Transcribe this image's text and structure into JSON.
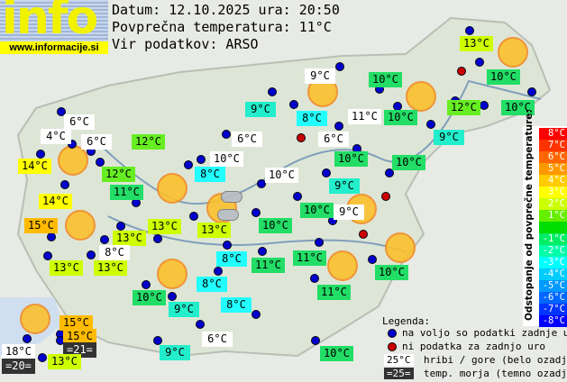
{
  "logo": {
    "text": "info",
    "url": "www.informacije.si"
  },
  "header": {
    "date_line": "Datum: 12.10.2025 ura: 20:50",
    "avg_line": "Povprečna temperatura: 11°C",
    "source_line": "Vir podatkov: ARSO"
  },
  "colors": {
    "white": "#ffffff",
    "cyan": "#22ffff",
    "teal": "#22eecc",
    "green": "#22dd66",
    "lime": "#66ee22",
    "yellowgreen": "#ccff00",
    "yellow": "#ffff00",
    "orange": "#ffbb00",
    "dark": "#333333",
    "available_dot": "#0000cc",
    "nodata_dot": "#cc0000"
  },
  "stations": [
    {
      "t": "6°C",
      "bg": "white"
    },
    {
      "t": "4°C",
      "bg": "white"
    },
    {
      "t": "6°C",
      "bg": "white"
    },
    {
      "t": "14°C",
      "bg": "yellow"
    },
    {
      "t": "12°C",
      "bg": "lime"
    },
    {
      "t": "12°C",
      "bg": "lime"
    },
    {
      "t": "11°C",
      "bg": "green"
    },
    {
      "t": "14°C",
      "bg": "yellow"
    },
    {
      "t": "15°C",
      "bg": "orange"
    },
    {
      "t": "13°C",
      "bg": "yellowgreen"
    },
    {
      "t": "13°C",
      "bg": "yellowgreen"
    },
    {
      "t": "8°C",
      "bg": "white"
    },
    {
      "t": "13°C",
      "bg": "yellowgreen"
    },
    {
      "t": "13°C",
      "bg": "yellowgreen"
    },
    {
      "t": "13°C",
      "bg": "yellowgreen"
    },
    {
      "t": "8°C",
      "bg": "cyan"
    },
    {
      "t": "10°C",
      "bg": "white"
    },
    {
      "t": "6°C",
      "bg": "white"
    },
    {
      "t": "9°C",
      "bg": "teal"
    },
    {
      "t": "9°C",
      "bg": "white"
    },
    {
      "t": "8°C",
      "bg": "cyan"
    },
    {
      "t": "11°C",
      "bg": "white"
    },
    {
      "t": "6°C",
      "bg": "white"
    },
    {
      "t": "10°C",
      "bg": "green"
    },
    {
      "t": "10°C",
      "bg": "white"
    },
    {
      "t": "9°C",
      "bg": "teal"
    },
    {
      "t": "10°C",
      "bg": "green"
    },
    {
      "t": "9°C",
      "bg": "white"
    },
    {
      "t": "10°C",
      "bg": "green"
    },
    {
      "t": "10°C",
      "bg": "green"
    },
    {
      "t": "10°C",
      "bg": "green"
    },
    {
      "t": "13°C",
      "bg": "yellowgreen"
    },
    {
      "t": "10°C",
      "bg": "green"
    },
    {
      "t": "12°C",
      "bg": "lime"
    },
    {
      "t": "10°C",
      "bg": "green"
    },
    {
      "t": "9°C",
      "bg": "teal"
    },
    {
      "t": "10°C",
      "bg": "green"
    },
    {
      "t": "8°C",
      "bg": "cyan"
    },
    {
      "t": "11°C",
      "bg": "green"
    },
    {
      "t": "11°C",
      "bg": "green"
    },
    {
      "t": "11°C",
      "bg": "green"
    },
    {
      "t": "10°C",
      "bg": "green"
    },
    {
      "t": "8°C",
      "bg": "cyan"
    },
    {
      "t": "8°C",
      "bg": "cyan"
    },
    {
      "t": "10°C",
      "bg": "green"
    },
    {
      "t": "9°C",
      "bg": "teal"
    },
    {
      "t": "6°C",
      "bg": "white"
    },
    {
      "t": "9°C",
      "bg": "teal"
    },
    {
      "t": "10°C",
      "bg": "green"
    },
    {
      "t": "15°C",
      "bg": "orange"
    },
    {
      "t": "15°C",
      "bg": "orange"
    },
    {
      "t": "=21=",
      "bg": "dark"
    },
    {
      "t": "18°C",
      "bg": "white"
    },
    {
      "t": "=20=",
      "bg": "dark"
    },
    {
      "t": "13°C",
      "bg": "yellowgreen"
    }
  ],
  "weather_icons": [
    "sunny",
    "sunny",
    "sunny",
    "sunny",
    "sunny",
    "sunny",
    "sunny",
    "sunny",
    "sunny",
    "sunny",
    "sunny",
    "partly-cloudy"
  ],
  "scale": {
    "title": "Odstopanje od povprečne temperature:",
    "steps": [
      {
        "label": "8°C",
        "color": "#ff0000"
      },
      {
        "label": "7°C",
        "color": "#ff3300"
      },
      {
        "label": "6°C",
        "color": "#ff6600"
      },
      {
        "label": "5°C",
        "color": "#ff9900"
      },
      {
        "label": "4°C",
        "color": "#ffcc00"
      },
      {
        "label": "3°C",
        "color": "#ffff00"
      },
      {
        "label": "2°C",
        "color": "#ccff00"
      },
      {
        "label": "1°C",
        "color": "#66ee00"
      },
      {
        "label": "",
        "color": "#00dd00"
      },
      {
        "label": "-1°C",
        "color": "#00ee66"
      },
      {
        "label": "-2°C",
        "color": "#00ffaa"
      },
      {
        "label": "-3°C",
        "color": "#00ffff"
      },
      {
        "label": "-4°C",
        "color": "#00ccff"
      },
      {
        "label": "-5°C",
        "color": "#0099ff"
      },
      {
        "label": "-6°C",
        "color": "#0066ff"
      },
      {
        "label": "-7°C",
        "color": "#0033ff"
      },
      {
        "label": "-8°C",
        "color": "#0000ff"
      }
    ]
  },
  "legend": {
    "title": "Legenda:",
    "available": "na voljo so podatki zadnje ure",
    "no_data": "ni podatka za zadnjo uro",
    "mountain_sample": "25°C",
    "mountain": "hribi / gore (belo ozadje)",
    "sea_sample": "=25=",
    "sea": "temp. morja (temno ozadje)"
  }
}
